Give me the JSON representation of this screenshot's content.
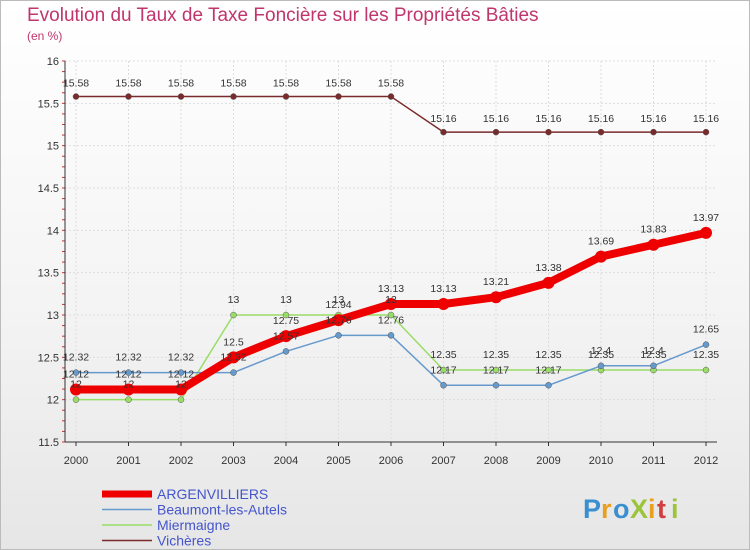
{
  "chart_data": {
    "type": "line",
    "title": "Evolution du Taux de Taxe Foncière sur les Propriétés Bâties",
    "subtitle": "(en %)",
    "xlabel": "",
    "ylabel": "(en %)",
    "ylim": [
      11.5,
      16
    ],
    "yticks": [
      "11.5",
      "12",
      "12.5",
      "13",
      "13.5",
      "14",
      "14.5",
      "15",
      "15.5",
      "16"
    ],
    "categories": [
      "2000",
      "2001",
      "2002",
      "2003",
      "2004",
      "2005",
      "2006",
      "2007",
      "2008",
      "2009",
      "2010",
      "2011",
      "2012"
    ],
    "series": [
      {
        "name": "ARGENVILLIERS",
        "color": "#ee0000",
        "values": [
          12.12,
          12.12,
          12.12,
          12.5,
          12.75,
          12.94,
          13.13,
          13.13,
          13.21,
          13.38,
          13.69,
          13.83,
          13.97
        ],
        "labels": [
          "12.12",
          "12.12",
          "12.12",
          "12.5",
          "12.75",
          "12.94",
          "13.13",
          "13.13",
          "13.21",
          "13.38",
          "13.69",
          "13.83",
          "13.97"
        ]
      },
      {
        "name": "Beaumont-les-Autels",
        "color": "#6699cc",
        "values": [
          12.32,
          12.32,
          12.32,
          12.32,
          12.57,
          12.76,
          12.76,
          12.17,
          12.17,
          12.17,
          12.4,
          12.4,
          12.65
        ],
        "labels": [
          "12.32",
          "12.32",
          "12.32",
          "12.32",
          "12.57",
          "12.76",
          "12.76",
          "12.17",
          "12.17",
          "12.17",
          "12.4",
          "12.4",
          "12.65"
        ]
      },
      {
        "name": "Miermaigne",
        "color": "#99dd66",
        "values": [
          12,
          12,
          12,
          13,
          13,
          13,
          13,
          12.35,
          12.35,
          12.35,
          12.35,
          12.35,
          12.35
        ],
        "labels": [
          "12",
          "12",
          "12",
          "13",
          "13",
          "13",
          "13",
          "12.35",
          "12.35",
          "12.35",
          "12.35",
          "12.35",
          "12.35"
        ]
      },
      {
        "name": "Vichères",
        "color": "#7a2a2a",
        "values": [
          15.58,
          15.58,
          15.58,
          15.58,
          15.58,
          15.58,
          15.58,
          15.16,
          15.16,
          15.16,
          15.16,
          15.16,
          15.16
        ],
        "labels": [
          "15.58",
          "15.58",
          "15.58",
          "15.58",
          "15.58",
          "15.58",
          "15.58",
          "15.16",
          "15.16",
          "15.16",
          "15.16",
          "15.16",
          "15.16"
        ]
      }
    ],
    "legend_position": "bottom-left"
  },
  "logo": {
    "text": "ProXiti"
  }
}
